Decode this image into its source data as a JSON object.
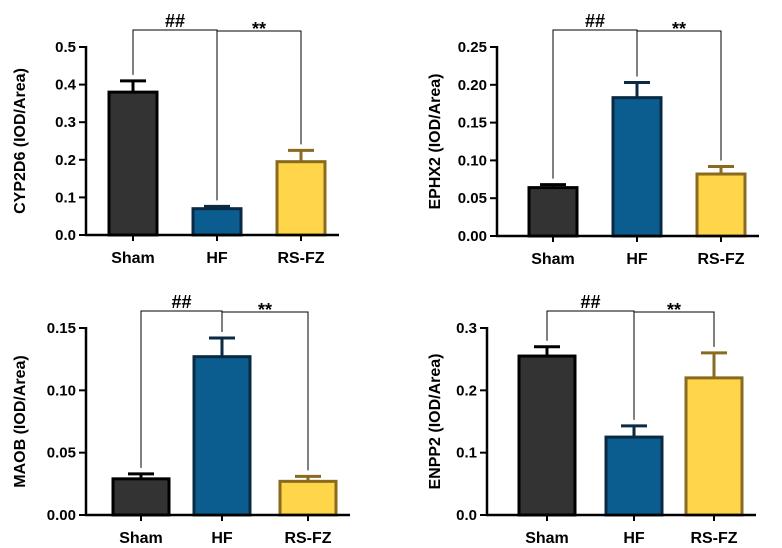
{
  "chart_data": [
    {
      "type": "bar",
      "ylabel": "CYP2D6 (IOD/Area)",
      "categories": [
        "Sham",
        "HF",
        "RS-FZ"
      ],
      "values": [
        0.38,
        0.07,
        0.195
      ],
      "errors": [
        0.03,
        0.006,
        0.03
      ],
      "ylim": [
        0,
        0.5
      ],
      "yticks": [
        "0.0",
        "0.1",
        "0.2",
        "0.3",
        "0.4",
        "0.5"
      ],
      "annotations": [
        {
          "label": "##",
          "from": "Sham",
          "to": "HF"
        },
        {
          "label": "**",
          "from": "HF",
          "to": "RS-FZ"
        }
      ]
    },
    {
      "type": "bar",
      "ylabel": "EPHX2 (IOD/Area)",
      "categories": [
        "Sham",
        "HF",
        "RS-FZ"
      ],
      "values": [
        0.064,
        0.183,
        0.082
      ],
      "errors": [
        0.004,
        0.02,
        0.01
      ],
      "ylim": [
        0,
        0.25
      ],
      "yticks": [
        "0.00",
        "0.05",
        "0.10",
        "0.15",
        "0.20",
        "0.25"
      ],
      "annotations": [
        {
          "label": "##",
          "from": "Sham",
          "to": "HF"
        },
        {
          "label": "**",
          "from": "HF",
          "to": "RS-FZ"
        }
      ]
    },
    {
      "type": "bar",
      "ylabel": "MAOB (IOD/Area)",
      "categories": [
        "Sham",
        "HF",
        "RS-FZ"
      ],
      "values": [
        0.029,
        0.127,
        0.027
      ],
      "errors": [
        0.004,
        0.015,
        0.004
      ],
      "ylim": [
        0,
        0.15
      ],
      "yticks": [
        "0.00",
        "0.05",
        "0.10",
        "0.15"
      ],
      "annotations": [
        {
          "label": "##",
          "from": "Sham",
          "to": "HF"
        },
        {
          "label": "**",
          "from": "HF",
          "to": "RS-FZ"
        }
      ]
    },
    {
      "type": "bar",
      "ylabel": "ENPP2 (IOD/Area)",
      "categories": [
        "Sham",
        "HF",
        "RS-FZ"
      ],
      "values": [
        0.255,
        0.125,
        0.22
      ],
      "errors": [
        0.015,
        0.018,
        0.04
      ],
      "ylim": [
        0,
        0.3
      ],
      "yticks": [
        "0.0",
        "0.1",
        "0.2",
        "0.3"
      ],
      "annotations": [
        {
          "label": "##",
          "from": "Sham",
          "to": "HF"
        },
        {
          "label": "**",
          "from": "HF",
          "to": "RS-FZ"
        }
      ]
    }
  ],
  "colors": {
    "fills": [
      "#333333",
      "#0b5d8f",
      "#ffd54a"
    ],
    "strokes": [
      "#000000",
      "#0a2a44",
      "#8a6a1f"
    ]
  }
}
